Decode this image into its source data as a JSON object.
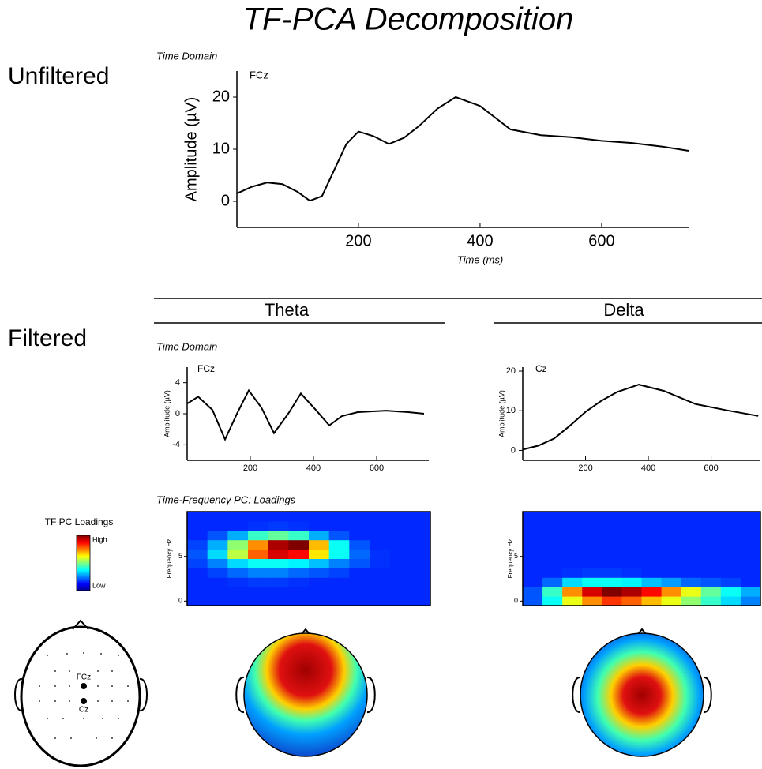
{
  "title": "TF-PCA Decomposition",
  "row_labels": [
    "Unfiltered",
    "Filtered"
  ],
  "band_labels": [
    "Theta",
    "Delta"
  ],
  "section_labels": [
    "Time Domain",
    "Time Domain",
    "Time-Frequency PC: Loadings"
  ],
  "colorbar": {
    "title": "TF PC Loadings",
    "high": "High",
    "low": "Low"
  },
  "electrode_labels": [
    "FCz",
    "Cz"
  ],
  "chart_data": [
    {
      "type": "line",
      "annotation": "FCz",
      "ylabel": "Amplitude (µV)",
      "xlabel": "Time (ms)",
      "color": "#000000",
      "x": [
        0,
        25,
        50,
        75,
        100,
        120,
        140,
        160,
        180,
        200,
        225,
        250,
        275,
        300,
        330,
        360,
        400,
        450,
        500,
        550,
        600,
        650,
        700,
        743
      ],
      "values": [
        1.5,
        2.8,
        3.6,
        3.3,
        1.8,
        0.1,
        1.0,
        6,
        11,
        13.4,
        12.5,
        11.0,
        12.2,
        14.5,
        17.8,
        20.0,
        18.3,
        13.8,
        12.7,
        12.3,
        11.6,
        11.2,
        10.5,
        9.7
      ],
      "xlim": [
        0,
        743
      ],
      "ylim": [
        -5,
        25
      ],
      "xticks": [
        200,
        400,
        600
      ],
      "yticks": [
        0,
        10,
        20
      ]
    },
    {
      "type": "line",
      "annotation": "FCz",
      "ylabel": "Amplitude (µV)",
      "color": "#000000",
      "x": [
        0,
        35,
        80,
        120,
        160,
        195,
        235,
        275,
        320,
        360,
        405,
        450,
        490,
        540,
        630,
        700,
        750
      ],
      "values": [
        1.3,
        2.2,
        0.5,
        -3.3,
        0.2,
        3.0,
        0.8,
        -2.5,
        0.0,
        2.6,
        0.6,
        -1.5,
        -0.3,
        0.2,
        0.4,
        0.2,
        0.0
      ],
      "xlim": [
        0,
        765
      ],
      "ylim": [
        -6,
        6
      ],
      "xticks": [
        200,
        400,
        600
      ],
      "yticks": [
        -4,
        0,
        4
      ]
    },
    {
      "type": "line",
      "annotation": "Cz",
      "ylabel": "Amplitude (µV)",
      "color": "#000000",
      "x": [
        0,
        50,
        100,
        150,
        200,
        250,
        300,
        370,
        450,
        550,
        650,
        750
      ],
      "values": [
        0.2,
        1.2,
        3,
        6.2,
        9.7,
        12.5,
        14.7,
        16.6,
        15,
        11.7,
        10.1,
        8.7
      ],
      "xlim": [
        0,
        757
      ],
      "ylim": [
        -2.5,
        21
      ],
      "xticks": [
        200,
        400,
        600
      ],
      "yticks": [
        0,
        10,
        20
      ]
    },
    {
      "type": "heatmap",
      "ylabel": "Frequency Hz",
      "xlim": [
        0,
        770
      ],
      "ylim": [
        -0.5,
        10
      ],
      "yticks": [
        0,
        5
      ],
      "zlim": [
        0,
        1
      ],
      "z": [
        [
          0.05,
          0.05,
          0.05,
          0.05,
          0.05,
          0.05,
          0.05,
          0.05,
          0.05,
          0.05,
          0.05,
          0.05
        ],
        [
          0.05,
          0.05,
          0.05,
          0.05,
          0.05,
          0.05,
          0.05,
          0.05,
          0.05,
          0.05,
          0.05,
          0.05
        ],
        [
          0.05,
          0.05,
          0.06,
          0.07,
          0.07,
          0.06,
          0.05,
          0.05,
          0.05,
          0.05,
          0.05,
          0.05
        ],
        [
          0.05,
          0.08,
          0.12,
          0.15,
          0.15,
          0.12,
          0.1,
          0.08,
          0.05,
          0.05,
          0.05,
          0.05
        ],
        [
          0.08,
          0.15,
          0.25,
          0.3,
          0.3,
          0.28,
          0.22,
          0.15,
          0.1,
          0.06,
          0.05,
          0.05
        ],
        [
          0.1,
          0.25,
          0.5,
          0.75,
          0.9,
          0.85,
          0.6,
          0.3,
          0.12,
          0.06,
          0.05,
          0.05
        ],
        [
          0.08,
          0.2,
          0.45,
          0.7,
          0.95,
          1.0,
          0.65,
          0.3,
          0.1,
          0.05,
          0.05,
          0.05
        ],
        [
          0.05,
          0.1,
          0.2,
          0.35,
          0.4,
          0.35,
          0.2,
          0.1,
          0.05,
          0.05,
          0.05,
          0.05
        ],
        [
          0.05,
          0.05,
          0.05,
          0.06,
          0.07,
          0.06,
          0.05,
          0.05,
          0.05,
          0.05,
          0.05,
          0.05
        ],
        [
          0.05,
          0.05,
          0.05,
          0.05,
          0.05,
          0.05,
          0.05,
          0.05,
          0.05,
          0.05,
          0.05,
          0.05
        ]
      ]
    },
    {
      "type": "heatmap",
      "ylabel": "Frequency Hz",
      "xlim": [
        0,
        757
      ],
      "ylim": [
        -0.5,
        10
      ],
      "yticks": [
        0,
        5
      ],
      "zlim": [
        0,
        1
      ],
      "z": [
        [
          0.1,
          0.3,
          0.55,
          0.7,
          0.8,
          0.75,
          0.65,
          0.55,
          0.45,
          0.35,
          0.25,
          0.15
        ],
        [
          0.1,
          0.35,
          0.7,
          0.9,
          1.0,
          0.95,
          0.85,
          0.7,
          0.55,
          0.4,
          0.3,
          0.2
        ],
        [
          0.05,
          0.12,
          0.25,
          0.3,
          0.3,
          0.28,
          0.22,
          0.18,
          0.12,
          0.1,
          0.08,
          0.05
        ],
        [
          0.05,
          0.05,
          0.06,
          0.07,
          0.07,
          0.06,
          0.05,
          0.05,
          0.05,
          0.05,
          0.05,
          0.05
        ],
        [
          0.05,
          0.05,
          0.05,
          0.05,
          0.05,
          0.05,
          0.05,
          0.05,
          0.05,
          0.05,
          0.05,
          0.05
        ],
        [
          0.05,
          0.05,
          0.05,
          0.05,
          0.05,
          0.05,
          0.05,
          0.05,
          0.05,
          0.05,
          0.05,
          0.05
        ],
        [
          0.05,
          0.05,
          0.05,
          0.05,
          0.05,
          0.05,
          0.05,
          0.05,
          0.05,
          0.05,
          0.05,
          0.05
        ],
        [
          0.05,
          0.05,
          0.05,
          0.05,
          0.05,
          0.05,
          0.05,
          0.05,
          0.05,
          0.05,
          0.05,
          0.05
        ],
        [
          0.05,
          0.05,
          0.05,
          0.05,
          0.05,
          0.05,
          0.05,
          0.05,
          0.05,
          0.05,
          0.05,
          0.05
        ],
        [
          0.05,
          0.05,
          0.05,
          0.05,
          0.05,
          0.05,
          0.05,
          0.05,
          0.05,
          0.05,
          0.05,
          0.05
        ]
      ]
    }
  ]
}
